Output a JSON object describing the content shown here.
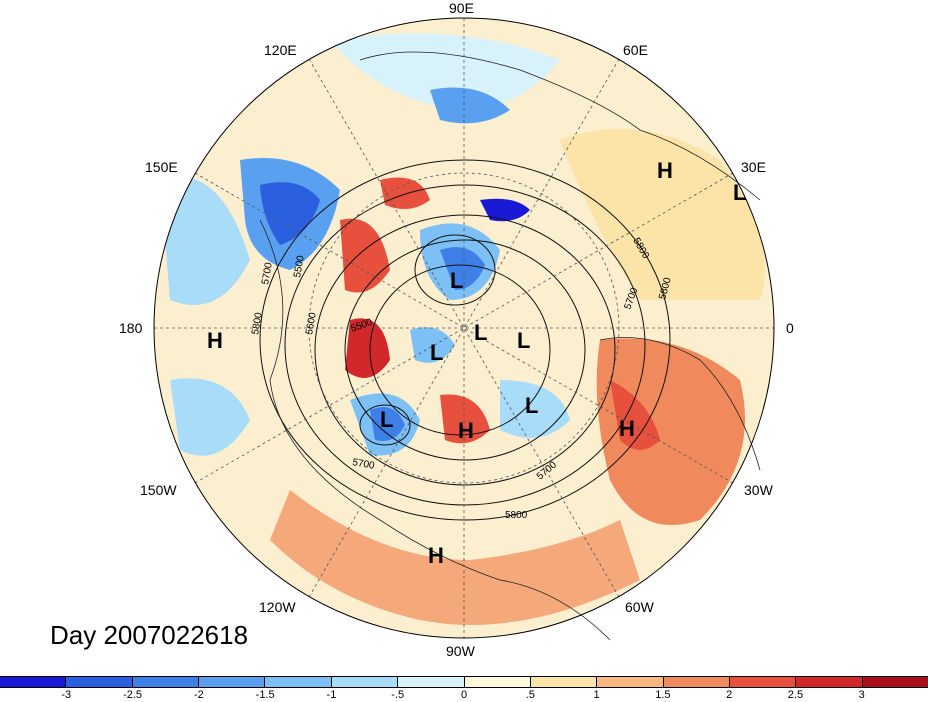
{
  "title": "Day 2007022618",
  "longitude_labels": [
    {
      "id": "90e",
      "text": "90E"
    },
    {
      "id": "60e",
      "text": "60E"
    },
    {
      "id": "120e",
      "text": "120E"
    },
    {
      "id": "150e",
      "text": "150E"
    },
    {
      "id": "30e",
      "text": "30E"
    },
    {
      "id": "180",
      "text": "180"
    },
    {
      "id": "0",
      "text": "0"
    },
    {
      "id": "150w",
      "text": "150W"
    },
    {
      "id": "30w",
      "text": "30W"
    },
    {
      "id": "120w",
      "text": "120W"
    },
    {
      "id": "60w",
      "text": "60W"
    },
    {
      "id": "90w",
      "text": "90W"
    }
  ],
  "pressure_centers": [
    {
      "id": "h1",
      "type": "H"
    },
    {
      "id": "l1",
      "type": "L"
    },
    {
      "id": "h2",
      "type": "H"
    },
    {
      "id": "l2",
      "type": "L"
    },
    {
      "id": "l3",
      "type": "L"
    },
    {
      "id": "l4",
      "type": "L"
    },
    {
      "id": "l5",
      "type": "L"
    },
    {
      "id": "l6",
      "type": "L"
    },
    {
      "id": "l7",
      "type": "L"
    },
    {
      "id": "h3",
      "type": "H"
    },
    {
      "id": "h4",
      "type": "H"
    },
    {
      "id": "h5",
      "type": "H"
    }
  ],
  "contour_labels": [
    "5500",
    "5600",
    "5700",
    "5800"
  ],
  "colorbar": {
    "ticks": [
      "-3",
      "-2.5",
      "-2",
      "-1.5",
      "-1",
      "-.5",
      "0",
      ".5",
      "1",
      "1.5",
      "2",
      "2.5",
      "3"
    ],
    "colors": [
      "#1a1ad6",
      "#2a5fe0",
      "#3f7fe8",
      "#5aa0f0",
      "#7cc0f5",
      "#a8dcf8",
      "#d8f2fb",
      "#fff8dc",
      "#fce3a8",
      "#f8b880",
      "#f08a5c",
      "#e8503e",
      "#d2282c",
      "#a8101c"
    ]
  }
}
